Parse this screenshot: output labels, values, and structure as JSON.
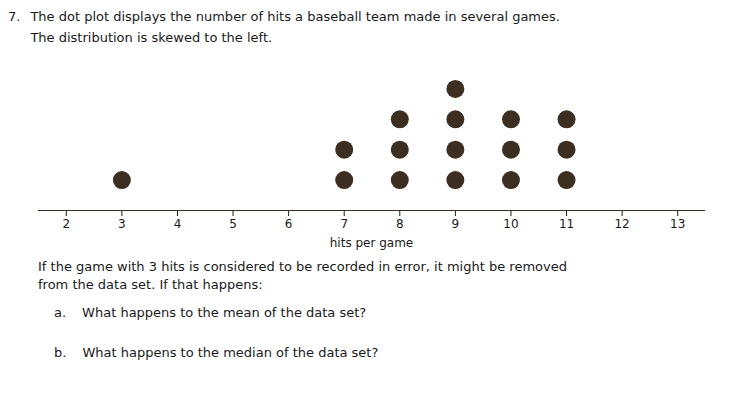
{
  "chart_data": {
    "type": "dot_plot",
    "title": "The dot plot displays the number of hits a baseball team made in several games.",
    "subtitle": "The distribution is skewed to the left.",
    "annotations": [
      "7.",
      "If the game with 3 hits is considered to be recorded in error, it might be removed",
      "from the data set. If that happens:",
      "a.",
      "What happens to the mean of the data set?",
      "b.",
      "What happens to the median of the data set?"
    ],
    "xlabel": "hits per game",
    "x": [
      3,
      7,
      8,
      9,
      10,
      11
    ],
    "values": [
      1,
      2,
      3,
      4,
      3,
      3
    ],
    "color": "#3d2e22",
    "xlim": [
      1.5,
      13.5
    ],
    "xticks": [
      2,
      3,
      4,
      5,
      6,
      7,
      8,
      9,
      10,
      11,
      12,
      13
    ],
    "ylim": [
      0,
      5
    ],
    "tick_labels": "x",
    "grid": false
  }
}
